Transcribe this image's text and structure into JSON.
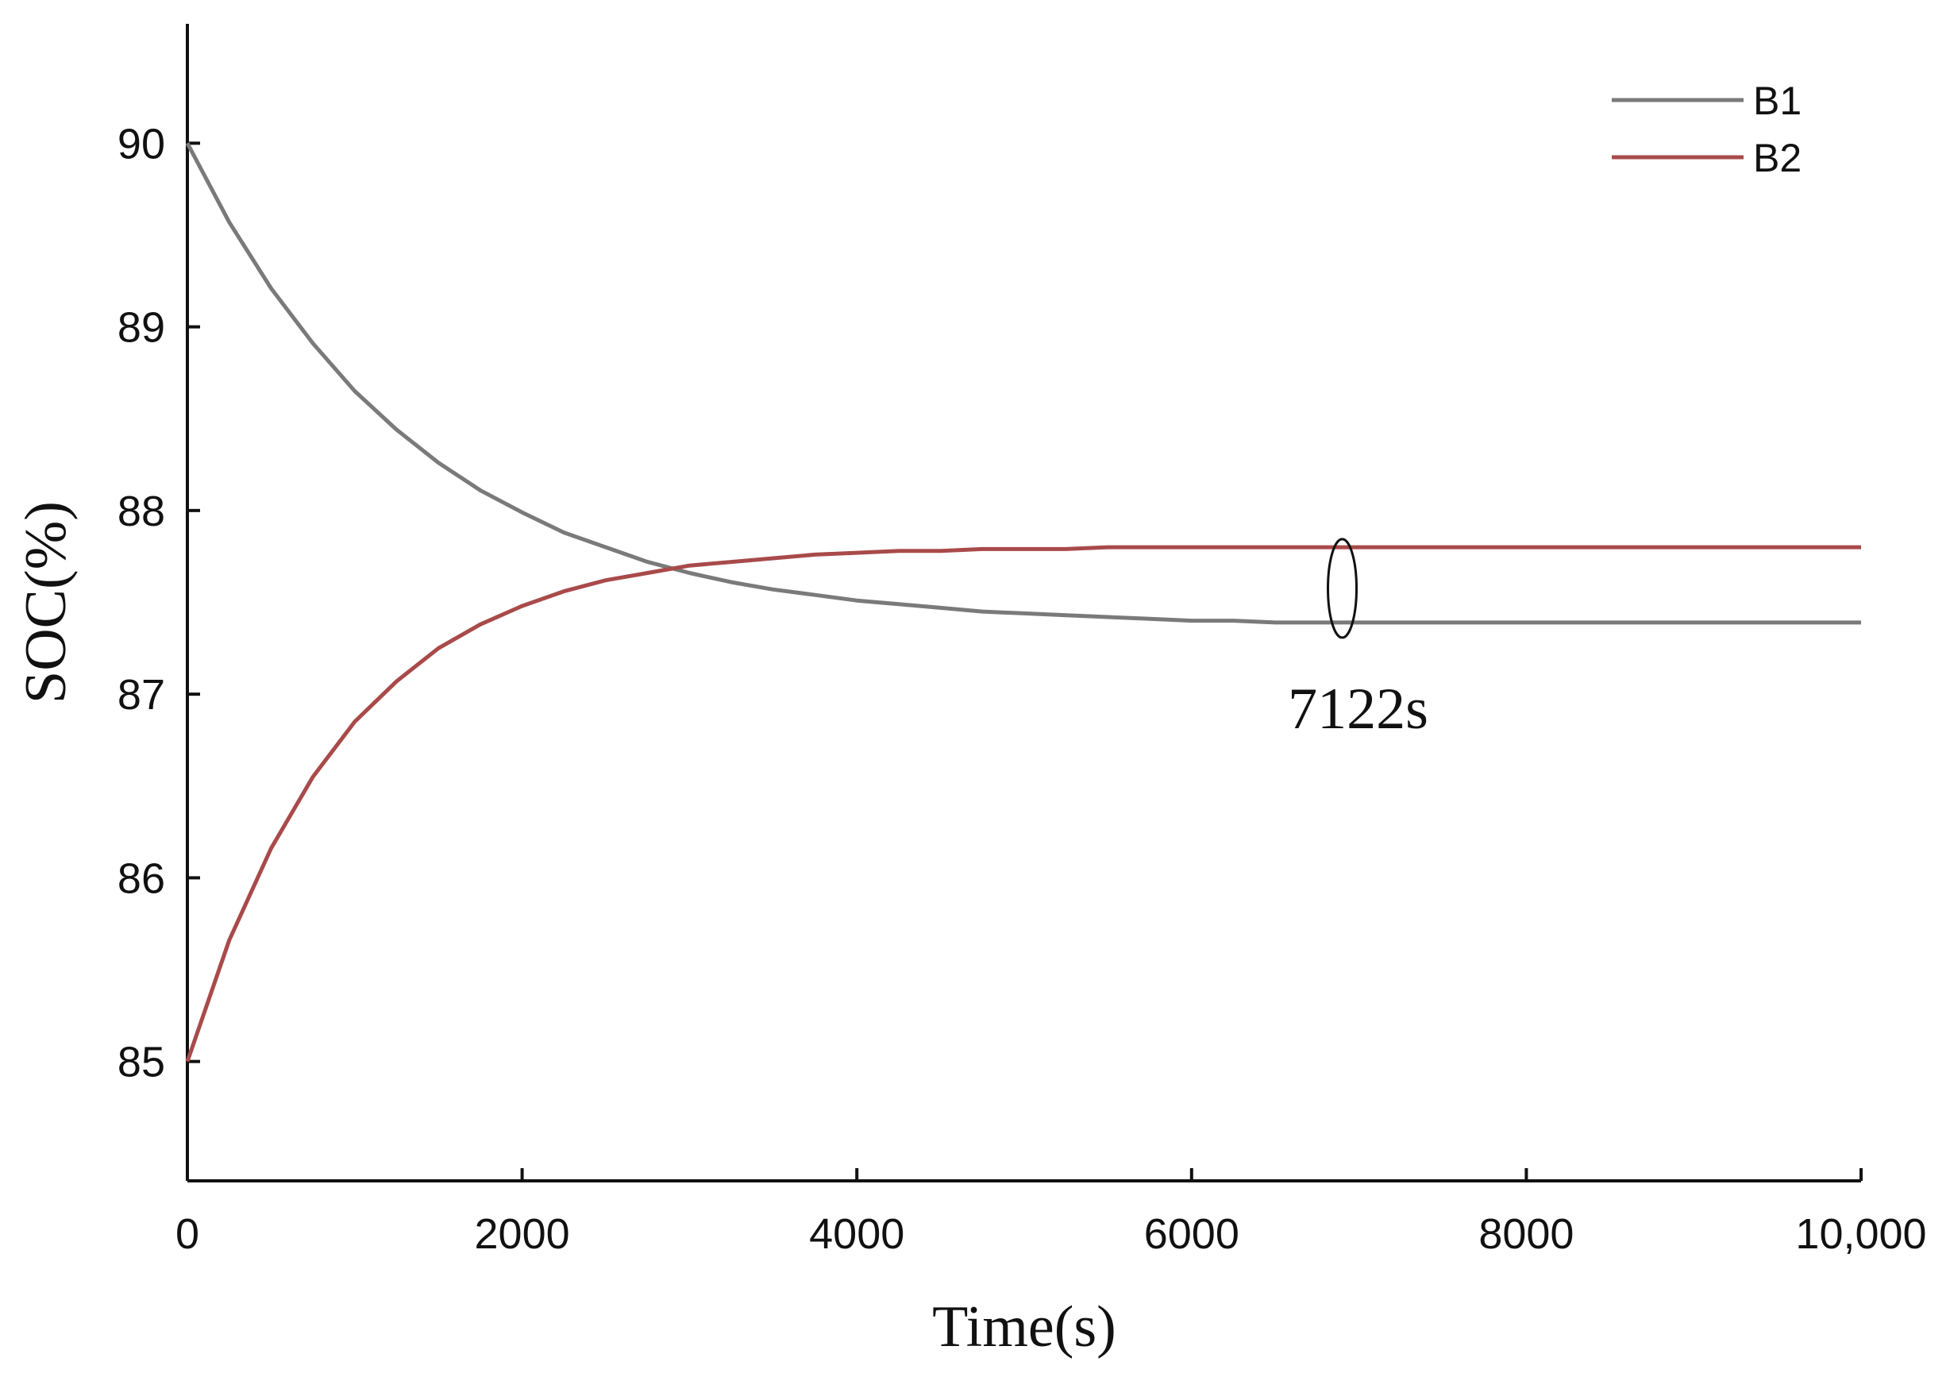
{
  "chart_data": {
    "type": "line",
    "title": "",
    "xlabel": "Time(s)",
    "ylabel": "SOC(%)",
    "xlim": [
      0,
      10000
    ],
    "ylim": [
      84.35,
      90.65
    ],
    "xticks": [
      0,
      2000,
      4000,
      6000,
      8000,
      10000
    ],
    "xtick_labels": [
      "0",
      "2000",
      "4000",
      "6000",
      "8000",
      "10,000"
    ],
    "yticks": [
      85,
      86,
      87,
      88,
      89,
      90
    ],
    "ytick_labels": [
      "85",
      "86",
      "87",
      "88",
      "89",
      "90"
    ],
    "grid": false,
    "legend_position": "top-right",
    "x": [
      0,
      250,
      500,
      750,
      1000,
      1250,
      1500,
      1750,
      2000,
      2250,
      2500,
      2750,
      3000,
      3250,
      3500,
      3750,
      4000,
      4250,
      4500,
      4750,
      5000,
      5250,
      5500,
      5750,
      6000,
      6250,
      6500,
      6750,
      7000,
      7250,
      7500,
      7750,
      8000,
      8250,
      8500,
      8750,
      9000,
      9250,
      9500,
      9750,
      10000
    ],
    "series": [
      {
        "name": "B1",
        "color": "#7a7a7a",
        "values": [
          90.0,
          89.57,
          89.21,
          88.91,
          88.65,
          88.44,
          88.26,
          88.11,
          87.99,
          87.88,
          87.8,
          87.72,
          87.66,
          87.61,
          87.57,
          87.54,
          87.51,
          87.49,
          87.47,
          87.45,
          87.44,
          87.43,
          87.42,
          87.41,
          87.4,
          87.4,
          87.39,
          87.39,
          87.39,
          87.39,
          87.39,
          87.39,
          87.39,
          87.39,
          87.39,
          87.39,
          87.39,
          87.39,
          87.39,
          87.39,
          87.39
        ]
      },
      {
        "name": "B2",
        "color": "#a94a4a",
        "values": [
          85.0,
          85.66,
          86.16,
          86.55,
          86.85,
          87.07,
          87.25,
          87.38,
          87.48,
          87.56,
          87.62,
          87.66,
          87.7,
          87.72,
          87.74,
          87.76,
          87.77,
          87.78,
          87.78,
          87.79,
          87.79,
          87.79,
          87.8,
          87.8,
          87.8,
          87.8,
          87.8,
          87.8,
          87.8,
          87.8,
          87.8,
          87.8,
          87.8,
          87.8,
          87.8,
          87.8,
          87.8,
          87.8,
          87.8,
          87.8,
          87.8
        ]
      }
    ],
    "annotations": [
      {
        "text": "7122s",
        "x": 6900,
        "y": 87.55,
        "marker": "ellipse"
      }
    ]
  }
}
